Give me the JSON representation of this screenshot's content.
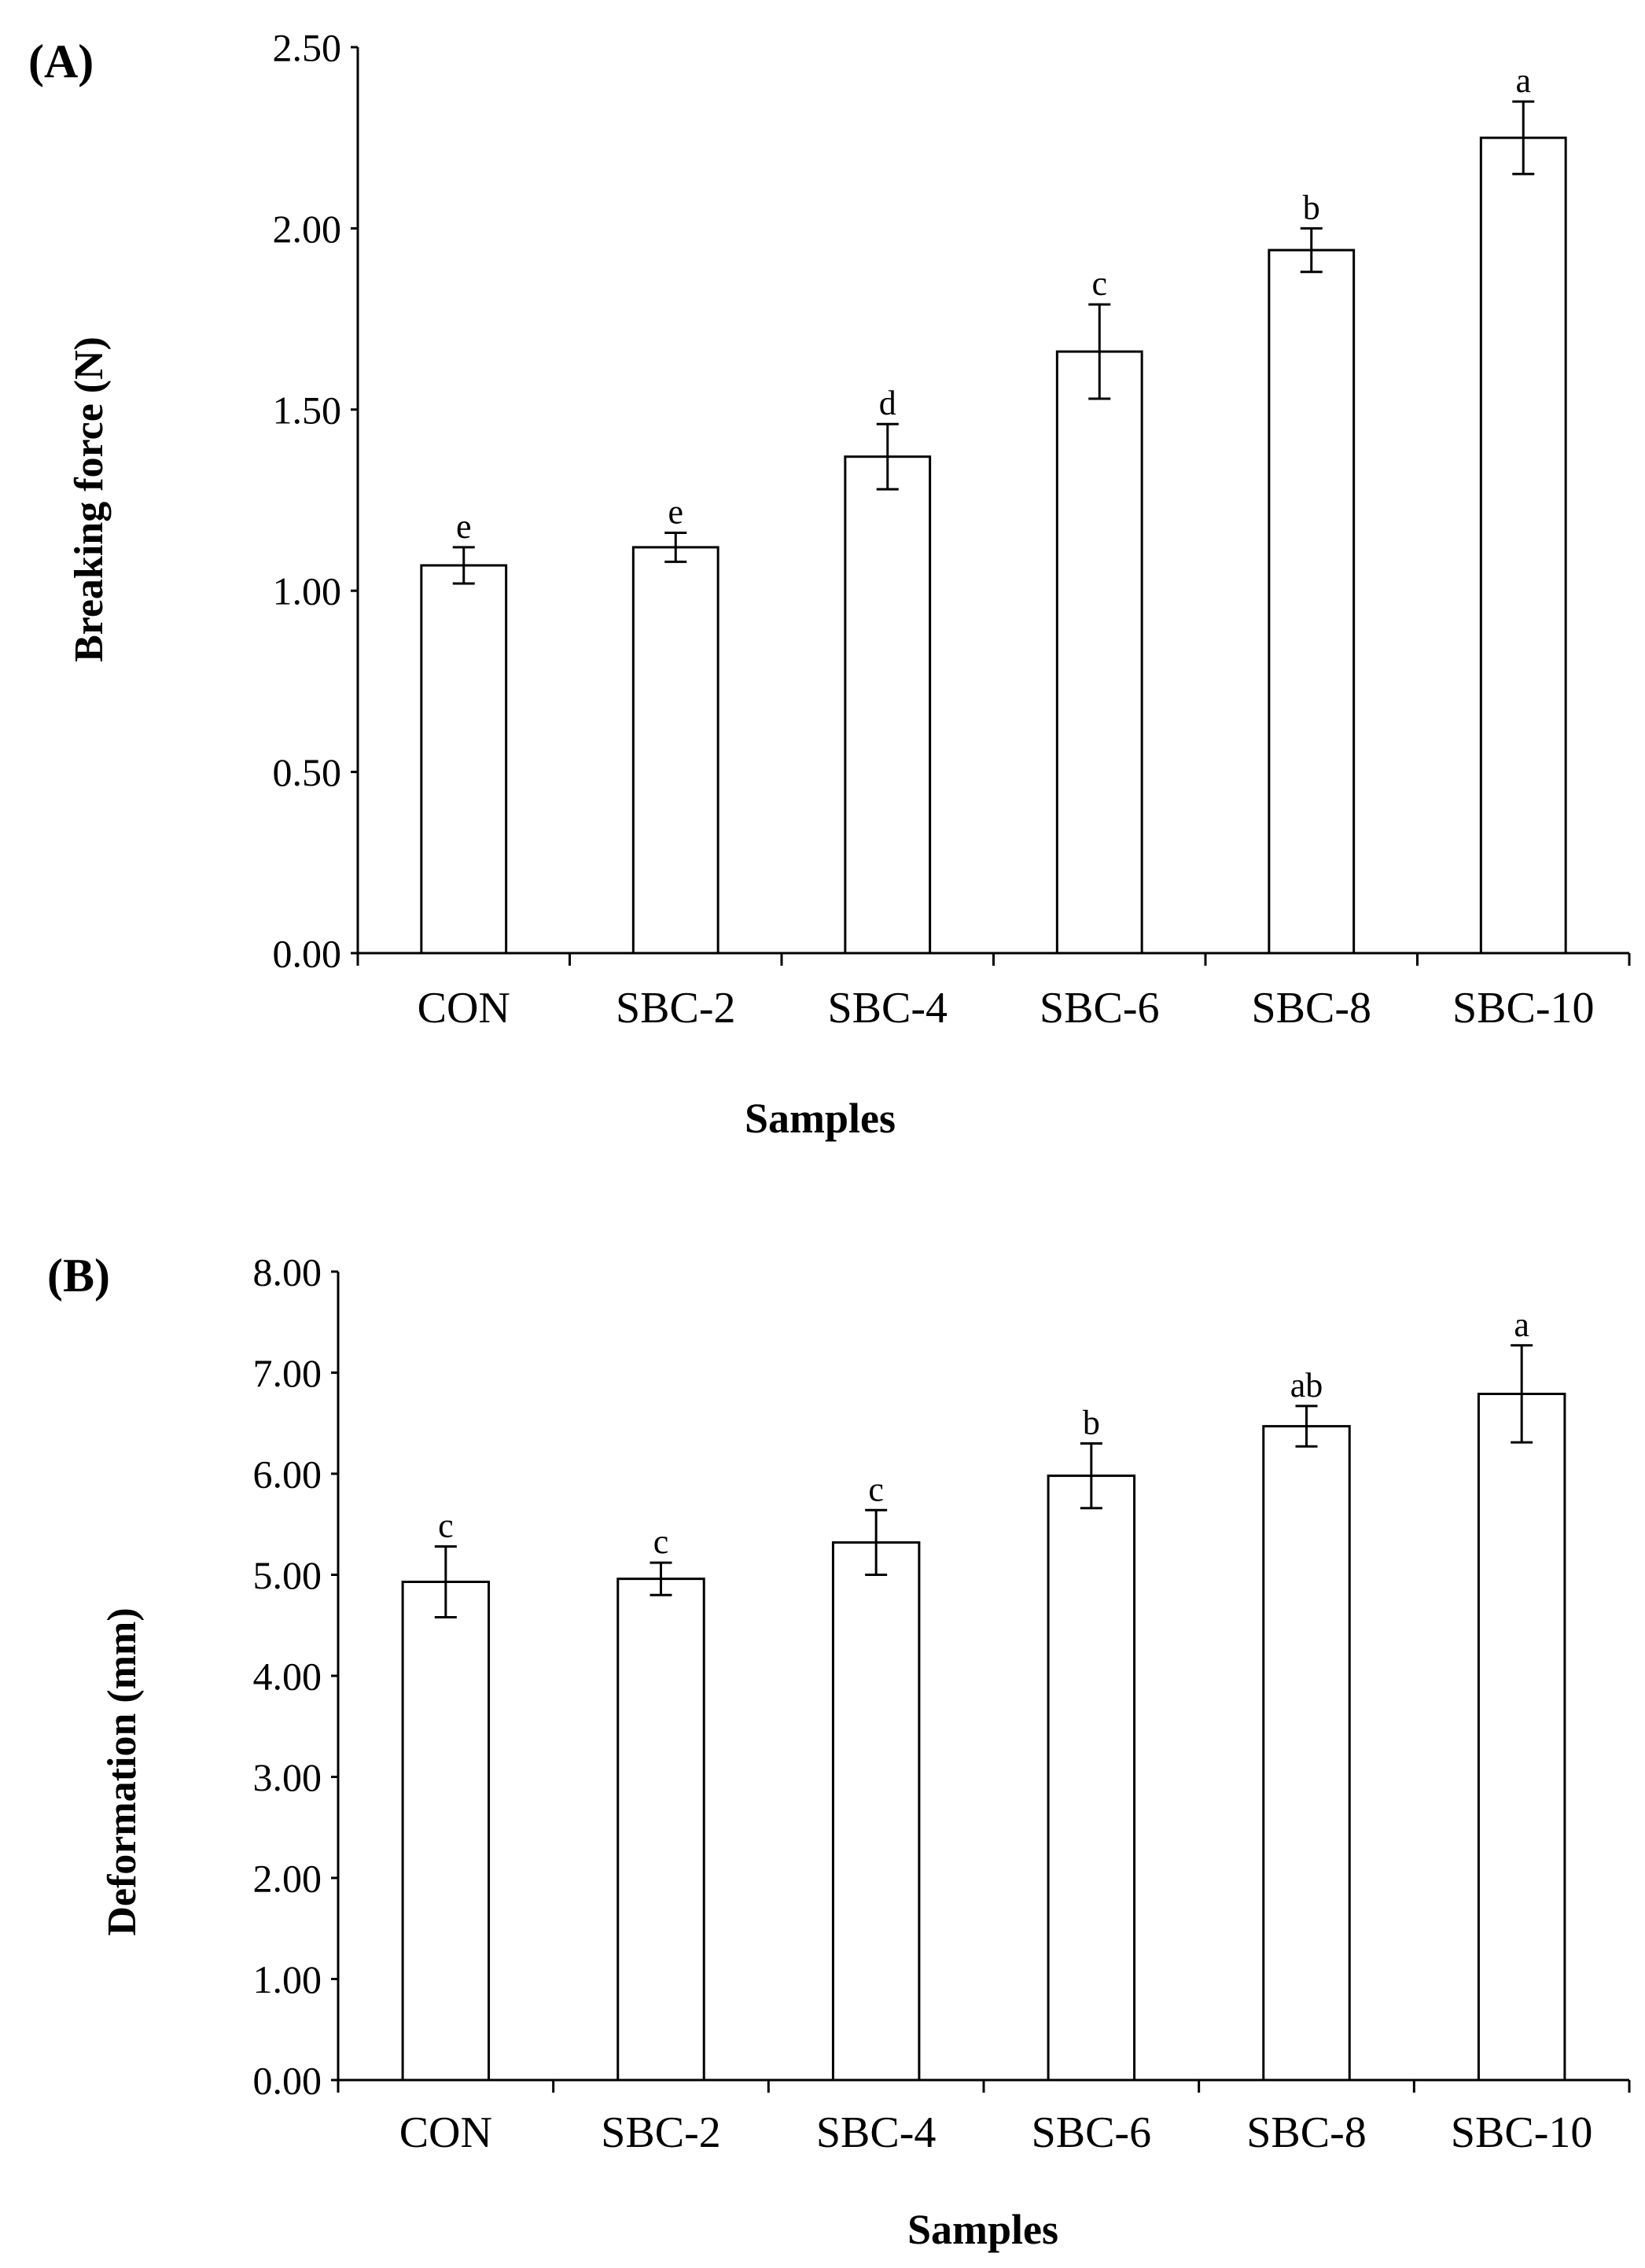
{
  "chart_data": [
    {
      "type": "bar",
      "panel_label": "(A)",
      "categories": [
        "CON",
        "SBC-2",
        "SBC-4",
        "SBC-6",
        "SBC-8",
        "SBC-10"
      ],
      "values": [
        1.07,
        1.12,
        1.37,
        1.66,
        1.94,
        2.25
      ],
      "errors": [
        0.05,
        0.04,
        0.09,
        0.13,
        0.06,
        0.1
      ],
      "significance": [
        "e",
        "e",
        "d",
        "c",
        "b",
        "a"
      ],
      "title": "",
      "xlabel": "Samples",
      "ylabel": "Breaking force (N)",
      "ylim": [
        0,
        2.5
      ],
      "yticks": [
        "0.00",
        "0.50",
        "1.00",
        "1.50",
        "2.00",
        "2.50"
      ],
      "ytick_values": [
        0,
        0.5,
        1.0,
        1.5,
        2.0,
        2.5
      ],
      "grid": false
    },
    {
      "type": "bar",
      "panel_label": "(B)",
      "categories": [
        "CON",
        "SBC-2",
        "SBC-4",
        "SBC-6",
        "SBC-8",
        "SBC-10"
      ],
      "values": [
        4.93,
        4.96,
        5.32,
        5.98,
        6.47,
        6.79
      ],
      "errors": [
        0.35,
        0.16,
        0.32,
        0.32,
        0.2,
        0.48
      ],
      "significance": [
        "c",
        "c",
        "c",
        "b",
        "ab",
        "a"
      ],
      "title": "",
      "xlabel": "Samples",
      "ylabel": "Deformation (mm)",
      "ylim": [
        0,
        8
      ],
      "yticks": [
        "0.00",
        "1.00",
        "2.00",
        "3.00",
        "4.00",
        "5.00",
        "6.00",
        "7.00",
        "8.00"
      ],
      "ytick_values": [
        0,
        1,
        2,
        3,
        4,
        5,
        6,
        7,
        8
      ],
      "grid": false
    }
  ],
  "colors": {
    "bar_fill": "#ffffff",
    "bar_stroke": "#000000",
    "axis": "#000000",
    "text": "#000000"
  }
}
